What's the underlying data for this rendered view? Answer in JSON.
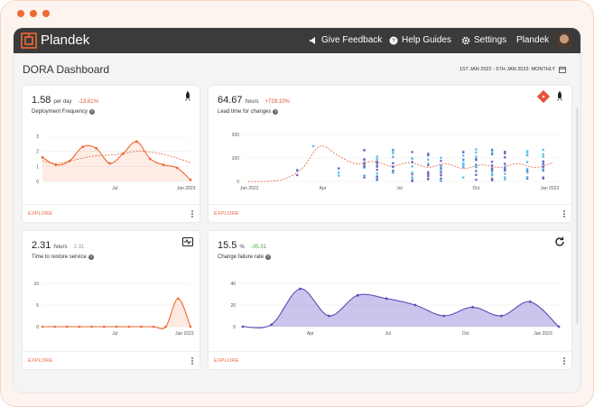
{
  "app": {
    "brand": "Plandek",
    "nav": {
      "feedback": "Give Feedback",
      "help": "Help Guides",
      "settings": "Settings",
      "account": "Plandek"
    }
  },
  "page": {
    "title": "DORA Dashboard",
    "date_range": "1ST JAN 2022 - 5TH JAN 2023: MONTHLY"
  },
  "cards": {
    "deploy": {
      "value": "1.58",
      "unit": "per day",
      "delta": "-13.61%",
      "label": "Deployment Frequency",
      "explore": "EXPLORE"
    },
    "lead": {
      "value": "64.67",
      "unit": "hours",
      "delta": "+729.10%",
      "label": "Lead time for changes",
      "explore": "EXPLORE"
    },
    "restore": {
      "value": "2.31",
      "unit": "hours",
      "delta": "2.31",
      "label": "Time to restore service",
      "explore": "EXPLORE"
    },
    "cfr": {
      "value": "15.5",
      "unit": "%",
      "delta": "-35.31",
      "label": "Change failure rate",
      "explore": "EXPLORE"
    }
  },
  "colors": {
    "accent": "#f06a32",
    "topbar": "#3b3b3b",
    "purple": "#8a7fd6"
  },
  "chart_data": [
    {
      "id": "deploy",
      "type": "line",
      "ylim": [
        0,
        3
      ],
      "yticks": [
        "0",
        "1",
        "2",
        "3"
      ],
      "xticks": [
        {
          "label": "Jul",
          "pos": 0.49
        },
        {
          "label": "Jan 2023",
          "pos": 0.97
        }
      ],
      "values": [
        1.6,
        1.1,
        1.35,
        2.3,
        2.2,
        1.2,
        1.85,
        2.65,
        1.5,
        1.1,
        0.9,
        0.1
      ],
      "trend": [
        1.35,
        1.2,
        1.35,
        1.55,
        1.7,
        1.75,
        1.85,
        2.0,
        1.95,
        1.8,
        1.55,
        1.25
      ]
    },
    {
      "id": "lead",
      "type": "scatter",
      "ylim": [
        0,
        200
      ],
      "yticks": [
        "0",
        "100",
        "200"
      ],
      "xticks": [
        {
          "label": "Jan 2022",
          "pos": 0.02
        },
        {
          "label": "Apr",
          "pos": 0.25
        },
        {
          "label": "Jul",
          "pos": 0.49
        },
        {
          "label": "Oct",
          "pos": 0.73
        },
        {
          "label": "Jan 2023",
          "pos": 0.96
        }
      ],
      "trend": [
        0,
        0,
        10,
        55,
        150,
        110,
        75,
        85,
        65,
        80,
        60,
        75,
        55,
        70,
        60,
        75,
        60,
        80
      ]
    },
    {
      "id": "restore",
      "type": "area",
      "ylim": [
        0,
        10
      ],
      "yticks": [
        "0",
        "5",
        "10"
      ],
      "xticks": [
        {
          "label": "Jul",
          "pos": 0.49
        },
        {
          "label": "Jan 2023",
          "pos": 0.96
        }
      ],
      "values": [
        0,
        0,
        0,
        0,
        0,
        0,
        0,
        0,
        0,
        0,
        0,
        6.5,
        0
      ]
    },
    {
      "id": "cfr",
      "type": "area",
      "ylim": [
        0,
        40
      ],
      "yticks": [
        "0",
        "20",
        "40"
      ],
      "xticks": [
        {
          "label": "Apr",
          "pos": 0.22
        },
        {
          "label": "Jul",
          "pos": 0.46
        },
        {
          "label": "Oct",
          "pos": 0.7
        },
        {
          "label": "Jan 2023",
          "pos": 0.94
        }
      ],
      "values": [
        0,
        2,
        35,
        10,
        29,
        26,
        20,
        10,
        18,
        10,
        23,
        0
      ]
    }
  ]
}
